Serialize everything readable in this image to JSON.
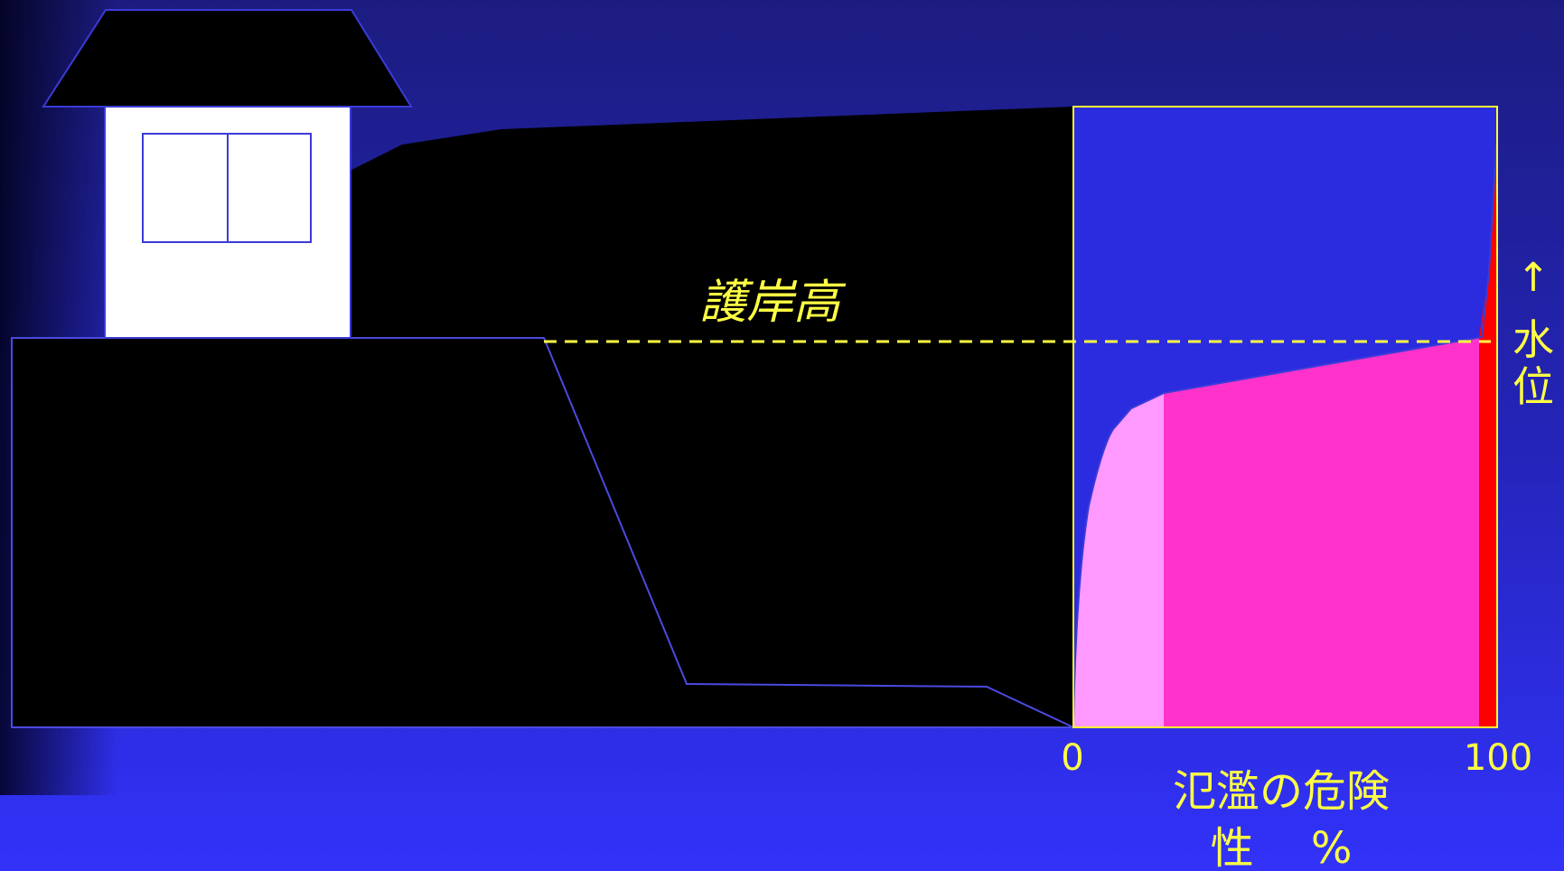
{
  "colors": {
    "background_top": "#1a1a7e",
    "background_bottom": "#2e2ef8",
    "embankment": "#000000",
    "outline": "#3b3bd8",
    "house_wall": "#ffffff",
    "chart_frame": "#ffff33",
    "label_yellow": "#ffff44",
    "risk_low": "#ff99ff",
    "risk_mid": "#ff33cc",
    "risk_high": "#ff0000",
    "chart_bg": "#2b2be0"
  },
  "labels": {
    "revetment_height": "護岸高",
    "water_level_arrow": "↑",
    "water_level_char1": "水",
    "water_level_char2": "位",
    "x_min": "0",
    "x_max": "100",
    "x_axis_line1": "氾濫の危険",
    "x_axis_line2": "性　 %"
  },
  "icons": {
    "house": "house-icon",
    "window": "window-icon"
  }
}
